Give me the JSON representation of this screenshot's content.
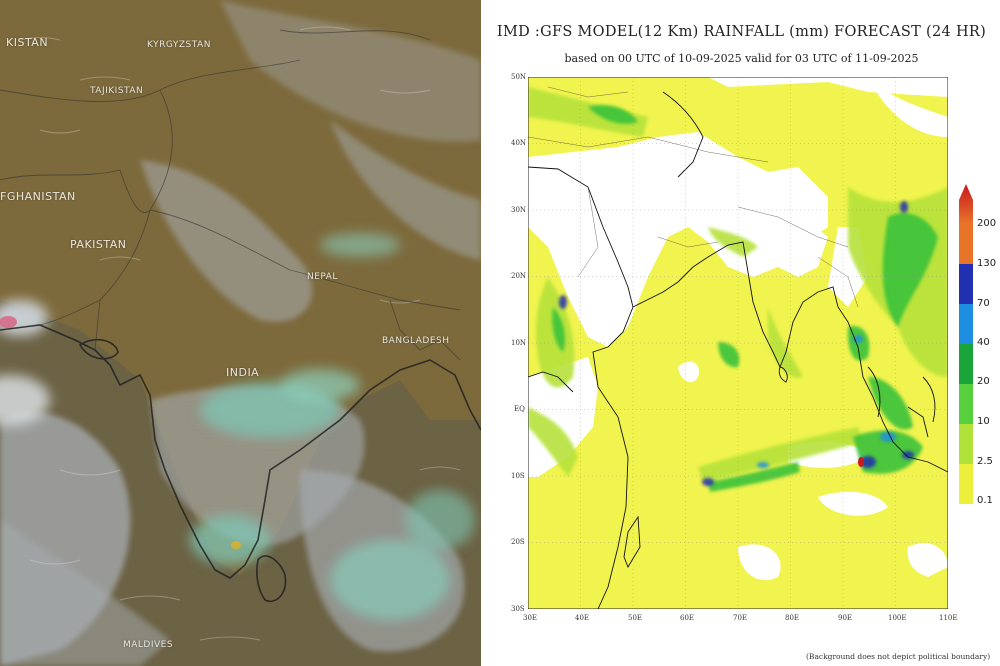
{
  "satellite_panel": {
    "labels": {
      "kistan": "KISTAN",
      "kyrgyzstan": "KYRGYZSTAN",
      "tajikistan": "TAJIKISTAN",
      "afghanistan": "FGHANISTAN",
      "pakistan": "PAKISTAN",
      "nepal": "NEPAL",
      "bangladesh": "BANGLADESH",
      "india": "INDIA",
      "maldives": "MALDIVES"
    },
    "colors": {
      "land": "#7d6a3c",
      "cloud": "#c9cfd6",
      "convection": "#7fc6b4",
      "border": "#2a2a2a"
    }
  },
  "forecast_panel": {
    "title": "IMD :GFS MODEL(12 Km) RAINFALL (mm) FORECAST (24 HR)",
    "subtitle": "based on 00 UTC of 10-09-2025 valid for 03 UTC of 11-09-2025",
    "lat_ticks": [
      "50N",
      "40N",
      "30N",
      "20N",
      "10N",
      "EQ",
      "10S",
      "20S",
      "30S"
    ],
    "lon_ticks": [
      "30E",
      "40E",
      "50E",
      "60E",
      "70E",
      "80E",
      "90E",
      "100E",
      "110E"
    ],
    "legend": {
      "labels": [
        "200",
        "130",
        "70",
        "40",
        "20",
        "10",
        "2.5",
        "0.1"
      ],
      "colors": [
        "#c8191e",
        "#e8742a",
        "#2030b0",
        "#1e8ee0",
        "#1aa53a",
        "#56d03c",
        "#b0e23a",
        "#ecf03a"
      ]
    },
    "footnote": "(Background does not depict political boundary)"
  }
}
